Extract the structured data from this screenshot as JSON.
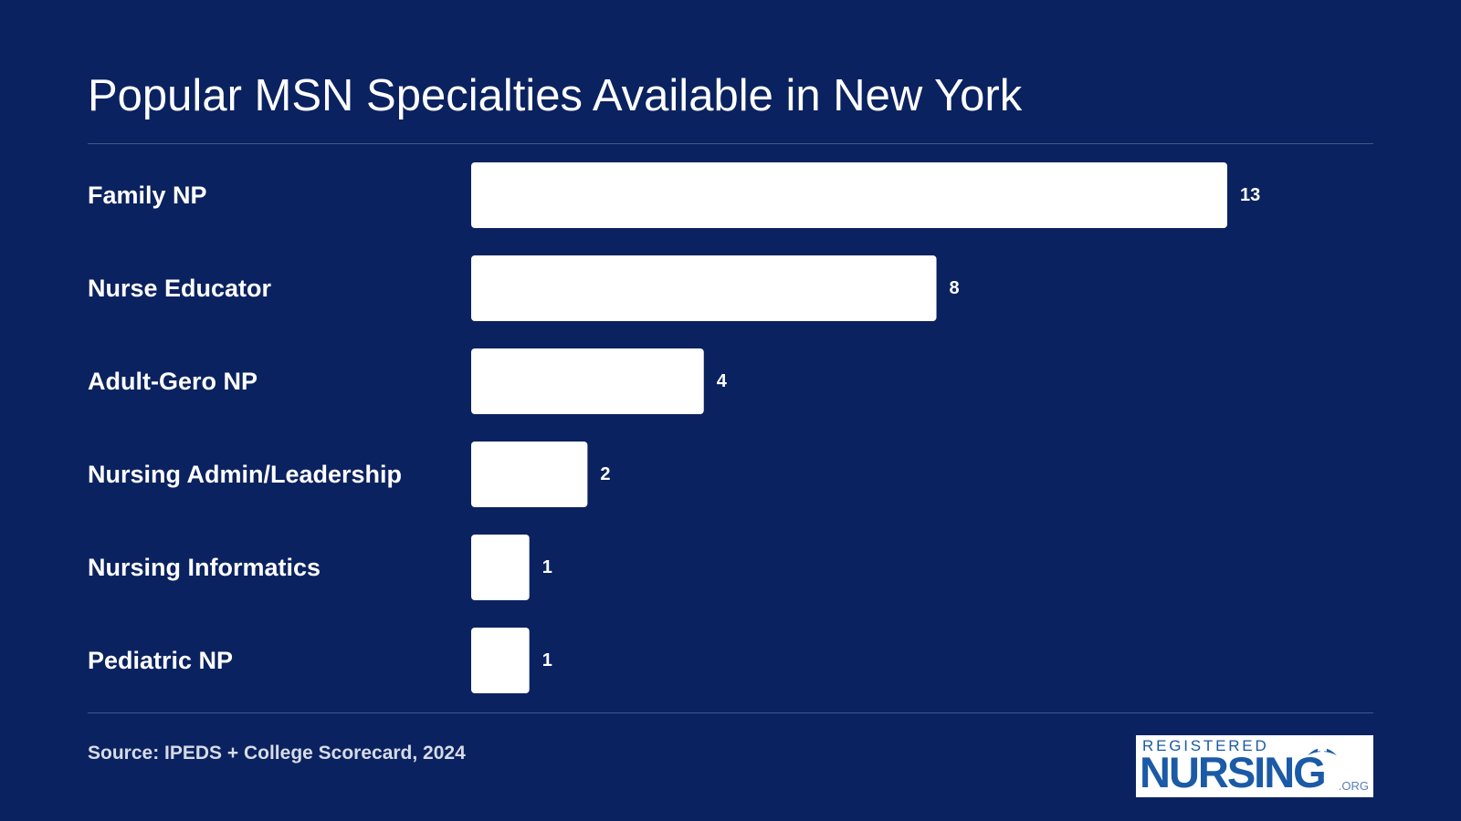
{
  "chart_data": {
    "type": "bar",
    "orientation": "horizontal",
    "title": "Popular MSN Specialties Available in New York",
    "categories": [
      "Family NP",
      "Nurse Educator",
      "Adult-Gero NP",
      "Nursing Admin/Leadership",
      "Nursing Informatics",
      "Pediatric NP"
    ],
    "values": [
      13,
      8,
      4,
      2,
      1,
      1
    ],
    "data_labels": [
      "13",
      "8",
      "4",
      "2",
      "1",
      "1"
    ],
    "xlabel": "",
    "ylabel": "",
    "xlim": [
      0,
      13
    ],
    "grid": false,
    "bar_color": "#ffffff",
    "background_color": "#0b2260"
  },
  "source": "Source: IPEDS + College Scorecard, 2024",
  "logo": {
    "top_text": "REGISTERED",
    "main_text": "NURSING",
    "suffix": ".ORG",
    "color": "#1b5aa6"
  }
}
